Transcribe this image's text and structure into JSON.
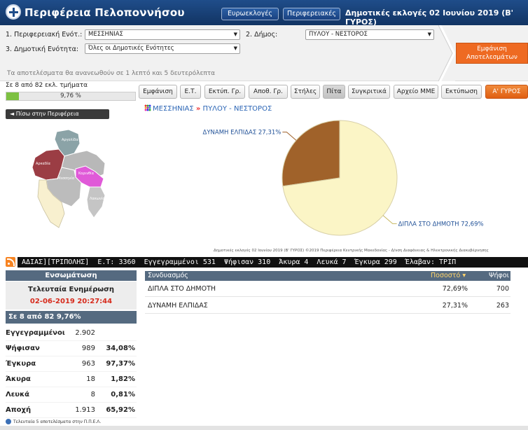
{
  "header": {
    "title": "Περιφέρεια Πελοποννήσου",
    "nav": [
      "Ευρωεκλογές",
      "Περιφερειακές"
    ],
    "election_title": "Δημοτικές εκλογές 02 Ιουνίου 2019 (Β' ΓΥΡΟΣ)"
  },
  "filters": {
    "unit_label": "1. Περιφερειακή Ενότ.:",
    "unit_value": "ΜΕΣΣΗΝΙΑΣ",
    "municipality_label": "2. Δήμος:",
    "municipality_value": "ΠΥΛΟΥ - ΝΕΣΤΟΡΟΣ",
    "district_label": "3. Δημοτική Ενότητα:",
    "district_value": "Όλες οι Δημοτικές Ενότητες",
    "show_button": [
      "Εμφάνιση",
      "Αποτελεσμάτων"
    ],
    "refresh_text": "Τα αποτελέσματα θα ανανεωθούν σε 1 λεπτό και 5 δευτερόλεπτα"
  },
  "progress": {
    "label": "Σε 8 από 82 εκλ. τμήματα",
    "text": "9,76 %",
    "fraction": 0.0976
  },
  "toolbar": {
    "buttons": [
      "Εμφάνιση",
      "Ε.Τ.",
      "Εκτύπ. Γρ.",
      "Αποθ. Γρ.",
      "Στήλες",
      "Πίτα",
      "Συγκριτικά",
      "Αρχείο ΜΜΕ",
      "Εκτύπωση",
      "Α' ΓΥΡΟΣ"
    ],
    "active": "Πίτα"
  },
  "back_button": "Πίσω στην Περιφέρεια",
  "map_labels": [
    "Αργολίδα",
    "Αρκαδία",
    "Κορινθία",
    "Λακωνία",
    "Μεσσηνία"
  ],
  "breadcrumb": {
    "region": "ΜΕΣΣΗΝΙΑΣ",
    "sep": "»",
    "municipality": "ΠΥΛΟΥ - ΝΕΣΤΟΡΟΣ"
  },
  "chart_data": {
    "type": "pie",
    "slices": [
      {
        "label": "ΔΥΝΑΜΗ ΕΛΠΙΔΑΣ 27,31%",
        "value": 27.31,
        "color": "#a0622a"
      },
      {
        "label": "ΔΙΠΛΑ ΣΤΟ ΔΗΜΟΤΗ 72,69%",
        "value": 72.69,
        "color": "#fbf5c6"
      }
    ]
  },
  "chart_caption": "Δημοτικές εκλογές 02 Ιουνίου 2019 (Β' ΓΥΡΟΣ) ©2019 Περιφέρεια Κεντρικής Μακεδονίας - Δ/νση Διαφάνειας & Ηλεκτρονικής Διακυβέρνησης",
  "ticker": "ΑΔΙΑΣ][ΤΡΙΠΟΛΗΣ]  Ε.Τ: 3360  Εγγεγραμμένοι 531  Ψήφισαν 310  Άκυρα 4  Λευκά 7  Έγκυρα 299  Έλαβαν: ΤΡΙΠ",
  "summary": {
    "title": "Ενσωμάτωση",
    "updated_label": "Τελευταία Ενημέρωση",
    "updated_at": "02-06-2019 20:27:44",
    "progress": "Σε 8 από  82   9,76%",
    "rows": [
      {
        "label": "Εγγεγραμμένοι",
        "value": "2.902",
        "pct": ""
      },
      {
        "label": "Ψήφισαν",
        "value": "989",
        "pct": "34,08%"
      },
      {
        "label": "Έγκυρα",
        "value": "963",
        "pct": "97,37%"
      },
      {
        "label": "Άκυρα",
        "value": "18",
        "pct": "1,82%"
      },
      {
        "label": "Λευκά",
        "value": "8",
        "pct": "0,81%"
      },
      {
        "label": "Αποχή",
        "value": "1.913",
        "pct": "65,92%"
      }
    ]
  },
  "results": {
    "headers": {
      "name": "Συνδυασμός",
      "pct": "Ποσοστό",
      "votes": "Ψήφοι"
    },
    "rows": [
      {
        "name": "ΔΙΠΛΑ ΣΤΟ ΔΗΜΟΤΗ",
        "pct": "72,69%",
        "votes": "700"
      },
      {
        "name": "ΔΥΝΑΜΗ ΕΛΠΙΔΑΣ",
        "pct": "27,31%",
        "votes": "263"
      }
    ]
  },
  "footnote": "Τελευταία 5 αποτελέσματα στην Π.Π.Ε.Λ."
}
